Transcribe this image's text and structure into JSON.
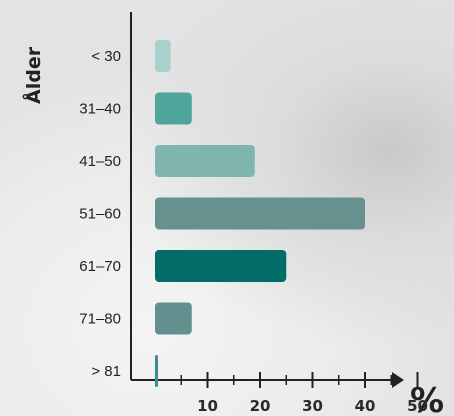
{
  "chart_data": {
    "type": "bar",
    "orientation": "horizontal",
    "ylabel": "Ålder",
    "xlabel": "%",
    "categories": [
      "< 30",
      "31–40",
      "41–50",
      "51–60",
      "61–70",
      "71–80",
      "> 81"
    ],
    "values": [
      3,
      7,
      19,
      40,
      25,
      7,
      0.5
    ],
    "x_ticks": [
      "10",
      "20",
      "30",
      "40",
      "50"
    ],
    "xlim": [
      0,
      50
    ],
    "grid": false,
    "colors": [
      "#a9d1cb",
      "#4fa59a",
      "#7fb5ae",
      "#66918f",
      "#026c69",
      "#62908e",
      "#3e8f8a"
    ]
  }
}
